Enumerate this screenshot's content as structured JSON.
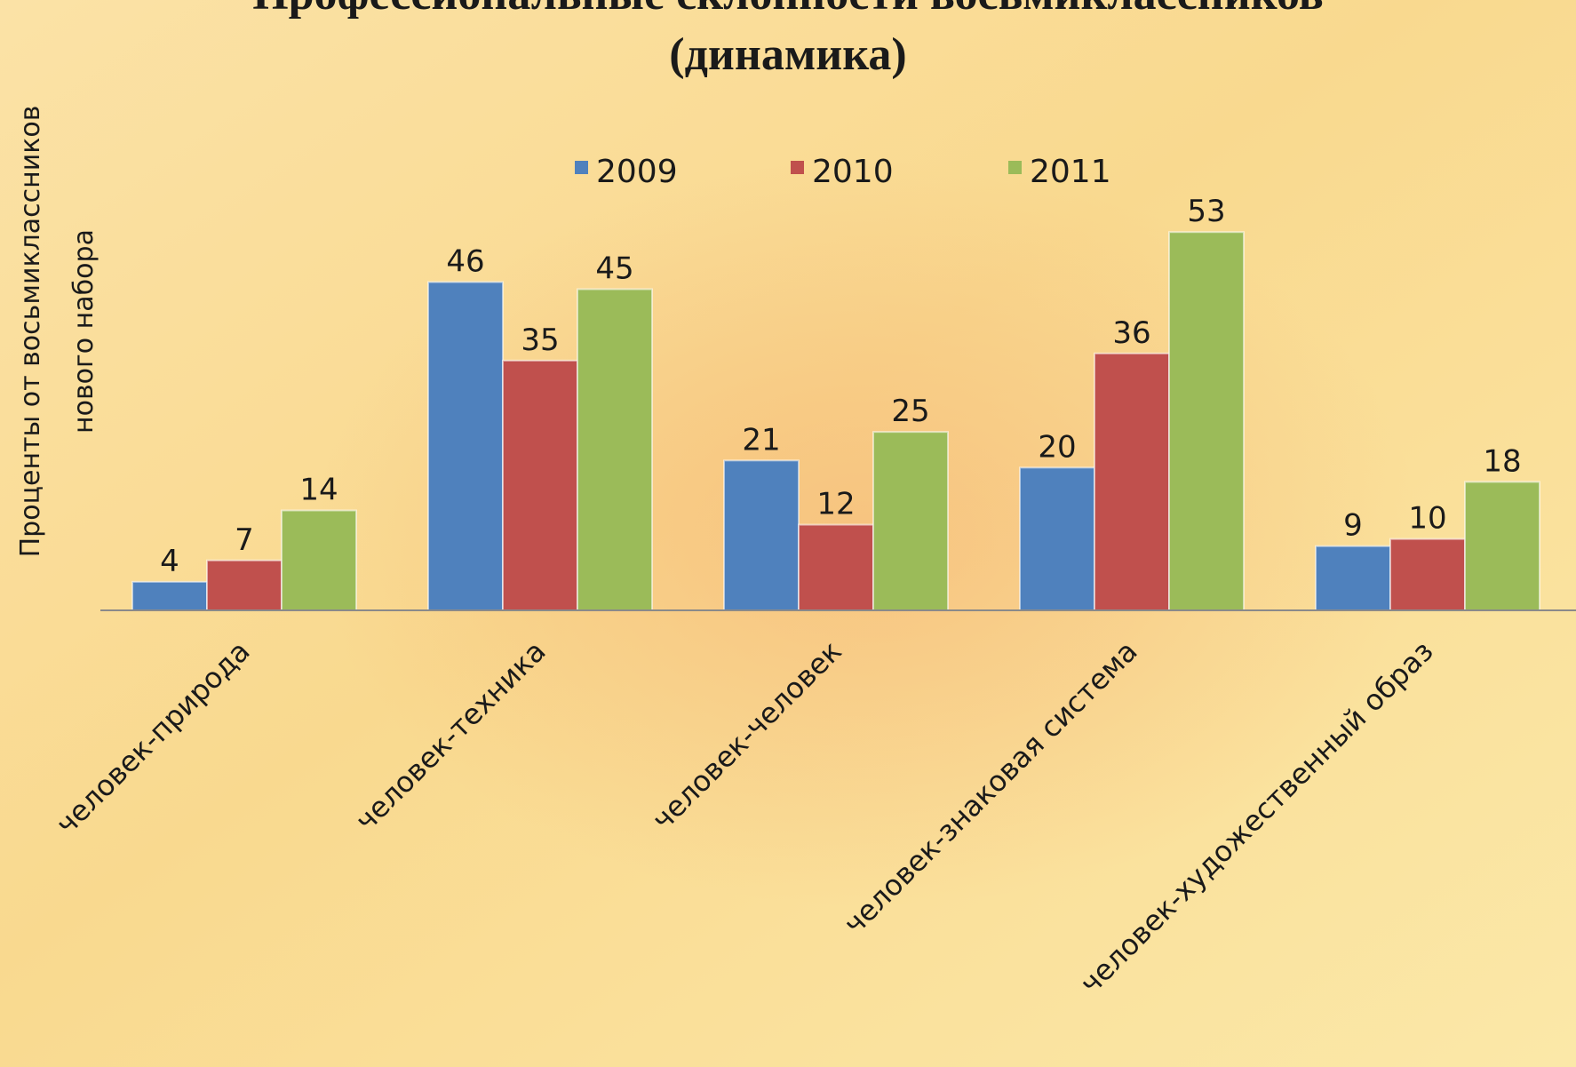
{
  "chart_data": {
    "type": "bar",
    "title": [
      "Профессиональные склонности восьмиклассников",
      "(динамика)"
    ],
    "y_label": [
      "Проценты от восьмиклассников",
      "нового набора"
    ],
    "categories": [
      "человек-природа",
      "человек-техника",
      "человек-человек",
      "человек-знаковая система",
      "человек-художественный образ"
    ],
    "series": [
      {
        "name": "2009",
        "color": "#4f81bd",
        "values": [
          4,
          46,
          21,
          20,
          9
        ]
      },
      {
        "name": "2010",
        "color": "#c0504d",
        "values": [
          7,
          35,
          12,
          36,
          10
        ]
      },
      {
        "name": "2011",
        "color": "#9bbb59",
        "values": [
          14,
          45,
          25,
          53,
          18
        ]
      }
    ],
    "ylim": [
      0,
      60
    ],
    "grid": false
  }
}
